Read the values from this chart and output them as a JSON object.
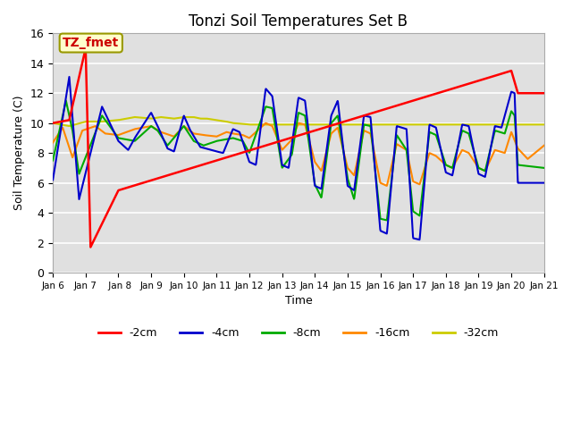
{
  "title": "Tonzi Soil Temperatures Set B",
  "xlabel": "Time",
  "ylabel": "Soil Temperature (C)",
  "ylim": [
    0,
    16
  ],
  "yticks": [
    0,
    2,
    4,
    6,
    8,
    10,
    12,
    14,
    16
  ],
  "x_labels": [
    "Jan 6",
    "Jan 7",
    " Jan 8",
    "Jan 9",
    "Jan 10",
    "Jan 11",
    "Jan 12",
    "Jan 13",
    "Jan 14",
    "Jan 15",
    "Jan 16",
    "Jan 17",
    "Jan 18",
    "Jan 19",
    "Jan 20",
    "Jan 21"
  ],
  "annotation_label": "TZ_fmet",
  "annotation_color": "#cc0000",
  "annotation_bg": "#ffffcc",
  "bg_color": "#e0e0e0",
  "line_colors": {
    "-2cm": "#ff0000",
    "-4cm": "#0000cc",
    "-8cm": "#00aa00",
    "-16cm": "#ff8800",
    "-32cm": "#cccc00"
  },
  "legend_labels": [
    "-2cm",
    "-4cm",
    "-8cm",
    "-16cm",
    "-32cm"
  ]
}
